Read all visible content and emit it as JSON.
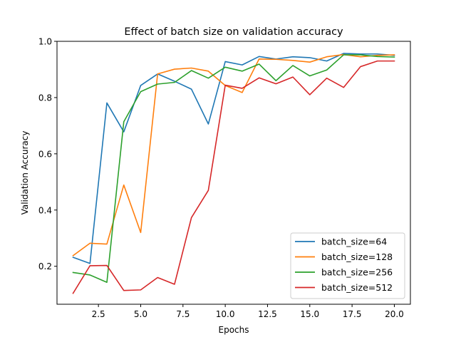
{
  "chart_data": {
    "type": "line",
    "title": "Effect of batch size on validation accuracy",
    "xlabel": "Epochs",
    "ylabel": "Validation Accuracy",
    "xlim": [
      0.05,
      20.95
    ],
    "ylim": [
      0.065,
      1.0
    ],
    "xticks": [
      2.5,
      5.0,
      7.5,
      10.0,
      12.5,
      15.0,
      17.5,
      20.0
    ],
    "xtick_labels": [
      "2.5",
      "5.0",
      "7.5",
      "10.0",
      "12.5",
      "15.0",
      "17.5",
      "20.0"
    ],
    "yticks": [
      0.2,
      0.4,
      0.6,
      0.8,
      1.0
    ],
    "ytick_labels": [
      "0.2",
      "0.4",
      "0.6",
      "0.8",
      "1.0"
    ],
    "grid": false,
    "legend_position": "lower-right",
    "x": [
      1,
      2,
      3,
      4,
      5,
      6,
      7,
      8,
      9,
      10,
      11,
      12,
      13,
      14,
      15,
      16,
      17,
      18,
      19,
      20
    ],
    "series": [
      {
        "name": "batch_size=64",
        "color": "#1f77b4",
        "values": [
          0.232,
          0.21,
          0.781,
          0.678,
          0.843,
          0.884,
          0.858,
          0.83,
          0.706,
          0.928,
          0.916,
          0.946,
          0.937,
          0.945,
          0.942,
          0.93,
          0.957,
          0.955,
          0.955,
          0.95
        ]
      },
      {
        "name": "batch_size=128",
        "color": "#ff7f0e",
        "values": [
          0.238,
          0.282,
          0.279,
          0.489,
          0.32,
          0.884,
          0.901,
          0.905,
          0.894,
          0.843,
          0.818,
          0.937,
          0.936,
          0.932,
          0.926,
          0.945,
          0.953,
          0.945,
          0.95,
          0.952
        ]
      },
      {
        "name": "batch_size=256",
        "color": "#2ca02c",
        "values": [
          0.178,
          0.169,
          0.143,
          0.714,
          0.821,
          0.848,
          0.854,
          0.896,
          0.869,
          0.908,
          0.894,
          0.919,
          0.86,
          0.914,
          0.877,
          0.898,
          0.952,
          0.952,
          0.946,
          0.944
        ]
      },
      {
        "name": "batch_size=512",
        "color": "#d62728",
        "values": [
          0.104,
          0.202,
          0.203,
          0.114,
          0.116,
          0.16,
          0.136,
          0.373,
          0.47,
          0.844,
          0.833,
          0.87,
          0.849,
          0.873,
          0.81,
          0.869,
          0.836,
          0.91,
          0.93,
          0.93
        ]
      }
    ]
  }
}
